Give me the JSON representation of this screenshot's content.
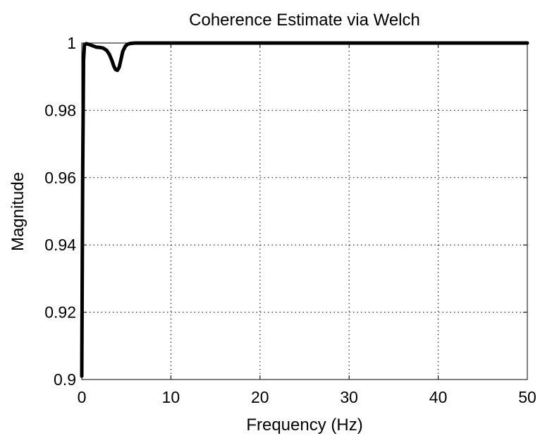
{
  "chart_data": {
    "type": "line",
    "title": "Coherence Estimate via Welch",
    "xlabel": "Frequency (Hz)",
    "ylabel": "Magnitude",
    "xlim": [
      0,
      50
    ],
    "ylim": [
      0.9,
      1
    ],
    "grid": true,
    "grid_style": "dotted",
    "xticks": [
      0,
      10,
      20,
      30,
      40,
      50
    ],
    "xtick_labels": [
      "0",
      "10",
      "20",
      "30",
      "40",
      "50"
    ],
    "yticks": [
      0.9,
      0.92,
      0.94,
      0.96,
      0.98,
      1
    ],
    "ytick_labels": [
      "0.9",
      "0.92",
      "0.94",
      "0.96",
      "0.98",
      "1"
    ],
    "series": [
      {
        "color": "#000000",
        "x": [
          0,
          0.1,
          0.2,
          0.3,
          0.5,
          0.8,
          1.2,
          1.6,
          2.0,
          2.4,
          2.8,
          3.1,
          3.4,
          3.6,
          3.8,
          4.0,
          4.2,
          4.4,
          4.6,
          4.9,
          5.2,
          5.5,
          6.0,
          7.0,
          10,
          20,
          30,
          40,
          50
        ],
        "y": [
          0.901,
          0.96,
          0.995,
          0.9995,
          0.9998,
          0.9996,
          0.9992,
          0.9988,
          0.9987,
          0.9985,
          0.9978,
          0.9966,
          0.9947,
          0.9931,
          0.9921,
          0.9919,
          0.9928,
          0.9951,
          0.9975,
          0.9991,
          0.9997,
          0.9999,
          1.0,
          1.0,
          1.0,
          1.0,
          1.0,
          1.0,
          1.0
        ]
      }
    ]
  }
}
